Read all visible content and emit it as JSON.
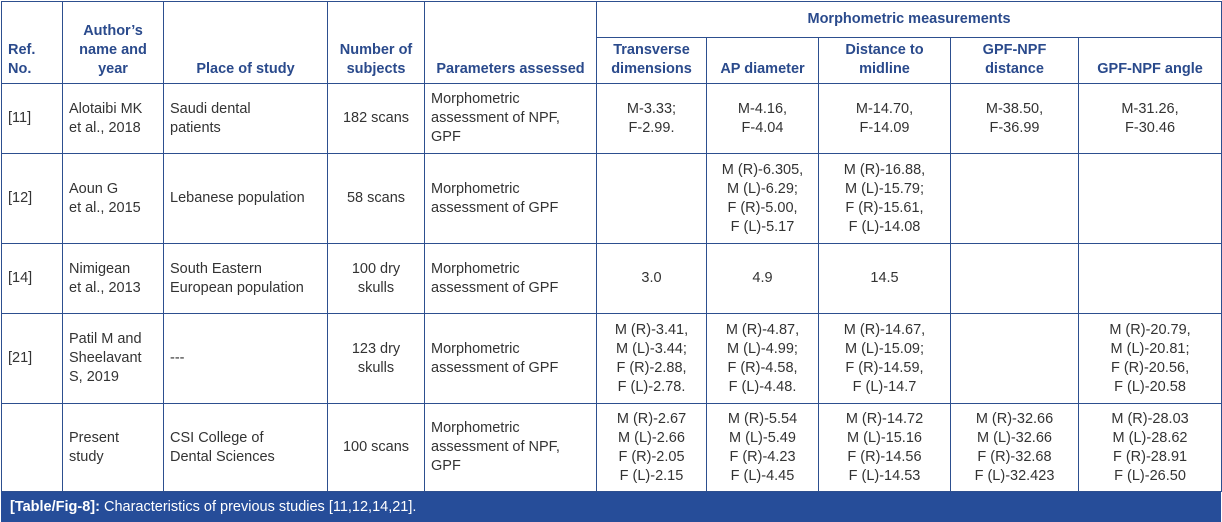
{
  "header": {
    "ref": "Ref. No.",
    "author": "Author’s name and year",
    "place": "Place of study",
    "subjects": "Number of subjects",
    "params": "Parameters assessed",
    "group": "Morphometric measurements",
    "transverse": "Transverse dimensions",
    "ap": "AP diameter",
    "midline": "Distance to midline",
    "gpf_npf_distance": "GPF-NPF distance",
    "gpf_npf_angle": "GPF-NPF angle"
  },
  "rows": [
    {
      "ref": "[11]",
      "author": [
        "Alotaibi MK",
        "et al., 2018"
      ],
      "place": [
        "Saudi dental",
        "patients"
      ],
      "subjects": [
        "182 scans"
      ],
      "params": [
        "Morphometric",
        "assessment of NPF,",
        "GPF"
      ],
      "transverse": [
        "M-3.33;",
        "F-2.99."
      ],
      "ap": [
        "M-4.16,",
        "F-4.04"
      ],
      "midline": [
        "M-14.70,",
        "F-14.09"
      ],
      "distance": [
        "M-38.50,",
        "F-36.99"
      ],
      "angle": [
        "M-31.26,",
        "F-30.46"
      ]
    },
    {
      "ref": "[12]",
      "author": [
        "Aoun G",
        "et al., 2015"
      ],
      "place": [
        "Lebanese population"
      ],
      "subjects": [
        "58 scans"
      ],
      "params": [
        "Morphometric",
        "assessment of GPF"
      ],
      "transverse": [],
      "ap": [
        "M (R)-6.305,",
        "M (L)-6.29;",
        "F (R)-5.00,",
        "F (L)-5.17"
      ],
      "midline": [
        "M (R)-16.88,",
        "M (L)-15.79;",
        "F (R)-15.61,",
        "F (L)-14.08"
      ],
      "distance": [],
      "angle": []
    },
    {
      "ref": "[14]",
      "author": [
        "Nimigean",
        "et al., 2013"
      ],
      "place": [
        "South Eastern",
        "European population"
      ],
      "subjects": [
        "100 dry",
        "skulls"
      ],
      "params": [
        "Morphometric",
        "assessment of GPF"
      ],
      "transverse": [
        "3.0"
      ],
      "ap": [
        "4.9"
      ],
      "midline": [
        "14.5"
      ],
      "distance": [],
      "angle": []
    },
    {
      "ref": "[21]",
      "author": [
        "Patil M and",
        "Sheelavant",
        "S, 2019"
      ],
      "place": [
        "---"
      ],
      "subjects": [
        "123 dry",
        "skulls"
      ],
      "params": [
        "Morphometric",
        "assessment of GPF"
      ],
      "transverse": [
        "M (R)-3.41,",
        "M (L)-3.44;",
        "F (R)-2.88,",
        "F (L)-2.78."
      ],
      "ap": [
        "M (R)-4.87,",
        "M (L)-4.99;",
        "F (R)-4.58,",
        "F (L)-4.48."
      ],
      "midline": [
        "M (R)-14.67,",
        "M (L)-15.09;",
        "F (R)-14.59,",
        "F (L)-14.7"
      ],
      "distance": [],
      "angle": [
        "M (R)-20.79,",
        "M (L)-20.81;",
        "F (R)-20.56,",
        "F (L)-20.58"
      ]
    },
    {
      "ref": "",
      "author": [
        "Present",
        "study"
      ],
      "place": [
        "CSI College of",
        "Dental Sciences"
      ],
      "subjects": [
        "100 scans"
      ],
      "params": [
        "Morphometric",
        "assessment of NPF,",
        "GPF"
      ],
      "transverse": [
        "M (R)-2.67",
        "M (L)-2.66",
        "F (R)-2.05",
        "F (L)-2.15"
      ],
      "ap": [
        "M (R)-5.54",
        "M (L)-5.49",
        "F (R)-4.23",
        "F (L)-4.45"
      ],
      "midline": [
        "M (R)-14.72",
        "M (L)-15.16",
        "F (R)-14.56",
        "F (L)-14.53"
      ],
      "distance": [
        "M (R)-32.66",
        "M (L)-32.66",
        "F (R)-32.68",
        "F (L)-32.423"
      ],
      "angle": [
        "M (R)-28.03",
        "M (L)-28.62",
        "F (R)-28.91",
        "F (L)-26.50"
      ]
    }
  ],
  "caption": {
    "label": "[Table/Fig-8]:",
    "text": " Characteristics of previous studies [11,12,14,21]."
  },
  "colors": {
    "border": "#2d4f8f",
    "header_text": "#2a4a8c",
    "caption_bg": "#264d99"
  }
}
